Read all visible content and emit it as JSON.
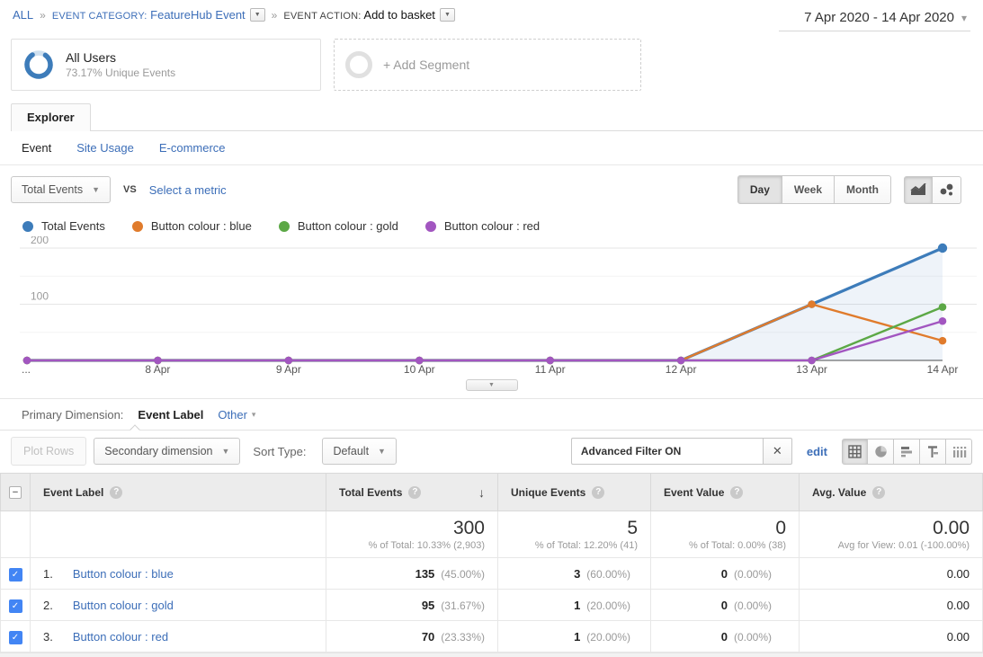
{
  "icons": {
    "dropdown_caret": "▼",
    "caret_down": "▾",
    "close": "✕",
    "sort_desc": "↓",
    "help": "?",
    "check": "✓",
    "minus": "−"
  },
  "breadcrumb": {
    "all": "ALL",
    "separator": "»",
    "category_label": "EVENT CATEGORY:",
    "category_value": "FeatureHub Event",
    "action_label": "EVENT ACTION:",
    "action_value": "Add to basket"
  },
  "date_range": "7 Apr 2020 - 14 Apr 2020",
  "segments": {
    "all_users_title": "All Users",
    "all_users_subtitle": "73.17% Unique Events",
    "add_segment": "+ Add Segment"
  },
  "tabs": {
    "explorer": "Explorer",
    "event": "Event",
    "site_usage": "Site Usage",
    "ecommerce": "E-commerce"
  },
  "controls": {
    "metric": "Total Events",
    "vs": "VS",
    "select_metric": "Select a metric",
    "day": "Day",
    "week": "Week",
    "month": "Month",
    "granularity_active": "Day"
  },
  "chart_data": {
    "type": "line",
    "x": [
      "...",
      "8 Apr",
      "9 Apr",
      "10 Apr",
      "11 Apr",
      "12 Apr",
      "13 Apr",
      "14 Apr"
    ],
    "ylim": [
      0,
      200
    ],
    "yticks": [
      100,
      200
    ],
    "grid": true,
    "legend_position": "top",
    "series": [
      {
        "name": "Total Events",
        "color": "#3d7cba",
        "area": true,
        "values": [
          0,
          0,
          0,
          0,
          0,
          0,
          100,
          200
        ]
      },
      {
        "name": "Button colour : blue",
        "color": "#e07b2c",
        "values": [
          0,
          0,
          0,
          0,
          0,
          0,
          100,
          35
        ]
      },
      {
        "name": "Button colour : gold",
        "color": "#5ca846",
        "values": [
          0,
          0,
          0,
          0,
          0,
          0,
          0,
          95
        ]
      },
      {
        "name": "Button colour : red",
        "color": "#a256c0",
        "values": [
          0,
          0,
          0,
          0,
          0,
          0,
          0,
          70
        ]
      }
    ]
  },
  "primary_dimension": {
    "label": "Primary Dimension:",
    "active": "Event Label",
    "other": "Other"
  },
  "toolbar": {
    "plot_rows": "Plot Rows",
    "secondary_dimension": "Secondary dimension",
    "sort_type_label": "Sort Type:",
    "sort_type_value": "Default",
    "advanced_filter": "Advanced Filter ON",
    "edit": "edit"
  },
  "table": {
    "headers": {
      "label": "Event Label",
      "total": "Total Events",
      "unique": "Unique Events",
      "value": "Event Value",
      "avg": "Avg. Value"
    },
    "summary": {
      "total": "300",
      "total_note": "% of Total: 10.33% (2,903)",
      "unique": "5",
      "unique_note": "% of Total: 12.20% (41)",
      "value": "0",
      "value_note": "% of Total: 0.00% (38)",
      "avg": "0.00",
      "avg_note": "Avg for View: 0.01 (-100.00%)"
    },
    "rows": [
      {
        "index": "1.",
        "label": "Button colour : blue",
        "total": "135",
        "total_pct": "(45.00%)",
        "unique": "3",
        "unique_pct": "(60.00%)",
        "value": "0",
        "value_pct": "(0.00%)",
        "avg": "0.00"
      },
      {
        "index": "2.",
        "label": "Button colour : gold",
        "total": "95",
        "total_pct": "(31.67%)",
        "unique": "1",
        "unique_pct": "(20.00%)",
        "value": "0",
        "value_pct": "(0.00%)",
        "avg": "0.00"
      },
      {
        "index": "3.",
        "label": "Button colour : red",
        "total": "70",
        "total_pct": "(23.33%)",
        "unique": "1",
        "unique_pct": "(20.00%)",
        "value": "0",
        "value_pct": "(0.00%)",
        "avg": "0.00"
      }
    ]
  }
}
